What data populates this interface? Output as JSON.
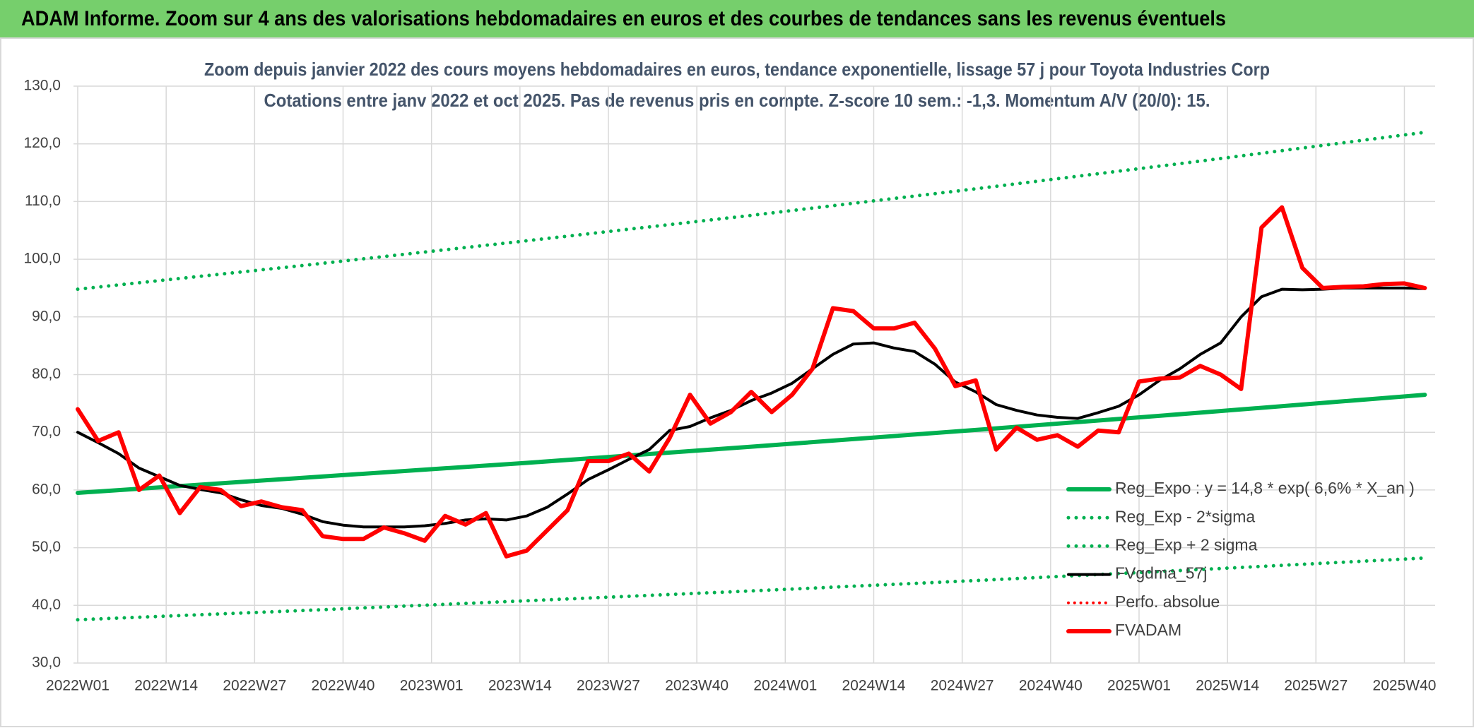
{
  "header": "ADAM Informe. Zoom sur 4 ans des valorisations hebdomadaires en euros et des courbes de tendances sans les revenus éventuels",
  "chart_data": {
    "type": "line",
    "title": "Zoom depuis janvier 2022 des cours moyens hebdomadaires en euros, tendance exponentielle, lissage 57 j pour Toyota Industries Corp",
    "subtitle": "Cotations entre janv 2022 et oct 2025. Pas de revenus pris en compte. Z-score 10 sem.: -1,3. Momentum A/V (20/0): 15.",
    "x": [
      0,
      3,
      6,
      9,
      12,
      15,
      18,
      21,
      24,
      27,
      30,
      33,
      36,
      39,
      42,
      45,
      48,
      51,
      54,
      57,
      60,
      63,
      66,
      69,
      72,
      75,
      78,
      81,
      84,
      87,
      90,
      93,
      96,
      99,
      102,
      105,
      108,
      111,
      114,
      117,
      120,
      123,
      126,
      129,
      132,
      135,
      138,
      141,
      144,
      147,
      150,
      153,
      156,
      159,
      162,
      165,
      168,
      171,
      174,
      177,
      180,
      183,
      186,
      189,
      192,
      195,
      198
    ],
    "xlim": [
      0,
      199
    ],
    "xticks": [
      {
        "value": 0,
        "label": "2022W01"
      },
      {
        "value": 13,
        "label": "2022W14"
      },
      {
        "value": 26,
        "label": "2022W27"
      },
      {
        "value": 39,
        "label": "2022W40"
      },
      {
        "value": 52,
        "label": "2023W01"
      },
      {
        "value": 65,
        "label": "2023W14"
      },
      {
        "value": 78,
        "label": "2023W27"
      },
      {
        "value": 91,
        "label": "2023W40"
      },
      {
        "value": 104,
        "label": "2024W01"
      },
      {
        "value": 117,
        "label": "2024W14"
      },
      {
        "value": 130,
        "label": "2024W27"
      },
      {
        "value": 143,
        "label": "2024W40"
      },
      {
        "value": 156,
        "label": "2025W01"
      },
      {
        "value": 169,
        "label": "2025W14"
      },
      {
        "value": 182,
        "label": "2025W27"
      },
      {
        "value": 195,
        "label": "2025W40"
      }
    ],
    "ylim": [
      30,
      130
    ],
    "yticks": [
      {
        "value": 30,
        "label": "30,0"
      },
      {
        "value": 40,
        "label": "40,0"
      },
      {
        "value": 50,
        "label": "50,0"
      },
      {
        "value": 60,
        "label": "60,0"
      },
      {
        "value": 70,
        "label": "70,0"
      },
      {
        "value": 80,
        "label": "80,0"
      },
      {
        "value": 90,
        "label": "90,0"
      },
      {
        "value": 100,
        "label": "100,0"
      },
      {
        "value": 110,
        "label": "110,0"
      },
      {
        "value": 120,
        "label": "120,0"
      },
      {
        "value": 130,
        "label": "130,0"
      }
    ],
    "grid": true,
    "legend": "lower right",
    "series": [
      {
        "name": "Reg_Expo : y = 14,8 * exp( 6,6% *  X_an )",
        "color": "#00b050",
        "style": "solid",
        "width": 6,
        "x": [
          0,
          33,
          66,
          99,
          132,
          165,
          198
        ],
        "values": [
          59.5,
          62.1,
          64.7,
          67.5,
          70.4,
          73.4,
          76.5
        ]
      },
      {
        "name": "Reg_Exp - 2*sigma",
        "color": "#00b050",
        "style": "dotted",
        "width": 5,
        "x": [
          0,
          33,
          66,
          99,
          132,
          165,
          198
        ],
        "values": [
          37.5,
          39.1,
          40.8,
          42.5,
          44.3,
          46.2,
          48.2
        ]
      },
      {
        "name": "Reg_Exp + 2 sigma",
        "color": "#00b050",
        "style": "dotted",
        "width": 5,
        "x": [
          0,
          33,
          66,
          99,
          132,
          165,
          198
        ],
        "values": [
          94.8,
          98.9,
          103.2,
          107.6,
          112.2,
          117.0,
          122.0
        ]
      },
      {
        "name": "FVgdma_57j",
        "color": "#000000",
        "style": "solid",
        "width": 4,
        "values": [
          70,
          68.2,
          66.3,
          63.8,
          62.3,
          60.8,
          60.1,
          59.5,
          58.3,
          57.3,
          56.8,
          55.8,
          54.5,
          53.9,
          53.6,
          53.6,
          53.6,
          53.8,
          54.2,
          54.8,
          55,
          54.8,
          55.5,
          57,
          59.3,
          61.8,
          63.5,
          65.3,
          67,
          70.3,
          71,
          72.5,
          73.8,
          75.5,
          76.8,
          78.5,
          81,
          83.5,
          85.3,
          85.5,
          84.6,
          84,
          81.8,
          78.7,
          77,
          74.8,
          73.8,
          73,
          72.6,
          72.4,
          73.4,
          74.5,
          76.5,
          79,
          81,
          83.5,
          85.5,
          90,
          93.5,
          94.8,
          94.7,
          94.8,
          95,
          95,
          95,
          95,
          94.9
        ]
      },
      {
        "name": "Perfo. absolue",
        "color": "#ff0000",
        "style": "dotted",
        "width": 4
      },
      {
        "name": "FVADAM",
        "color": "#ff0000",
        "style": "solid",
        "width": 6,
        "values": [
          74,
          68.5,
          70,
          60,
          62.5,
          56,
          60.5,
          60,
          57.2,
          58,
          57,
          56.5,
          52,
          51.5,
          51.5,
          53.5,
          52.5,
          51.2,
          55.5,
          54,
          56,
          48.5,
          49.5,
          53,
          56.5,
          65,
          65,
          66.3,
          63.2,
          69,
          76.5,
          71.5,
          73.5,
          77,
          73.5,
          76.5,
          81,
          91.5,
          91,
          88,
          88,
          89,
          84.5,
          78,
          79,
          67,
          70.8,
          68.7,
          69.5,
          67.5,
          70.3,
          70,
          78.8,
          79.3,
          79.5,
          81.5,
          80,
          77.5,
          105.5,
          109,
          98.5,
          95,
          95.2,
          95.3,
          95.7,
          95.8,
          95
        ]
      }
    ]
  }
}
